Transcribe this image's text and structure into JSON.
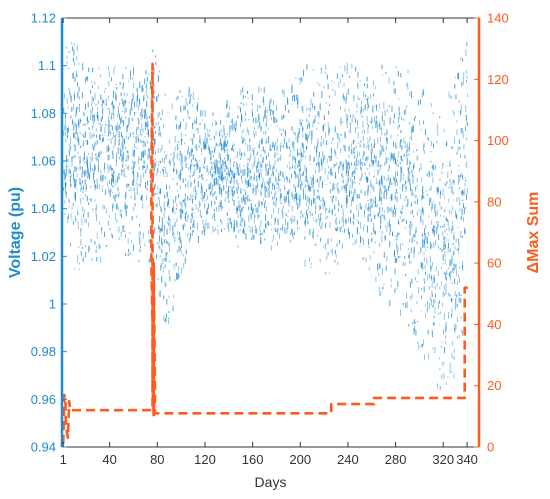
{
  "chart_data": {
    "type": "line",
    "title": "",
    "xlabel": "Days",
    "ylabel_left": "Voltage (pu)",
    "ylabel_right": "ΔMax Sum",
    "xlim": [
      0,
      350
    ],
    "ylim_left": [
      0.94,
      1.12
    ],
    "ylim_right": [
      0,
      140
    ],
    "xticks": [
      1,
      40,
      80,
      120,
      160,
      200,
      240,
      280,
      320,
      340
    ],
    "xtick_labels": [
      "1",
      "40",
      "80",
      "120",
      "160",
      "200",
      "240",
      "280",
      "320",
      "340"
    ],
    "yticks_left": [
      0.94,
      0.96,
      0.98,
      1.0,
      1.02,
      1.04,
      1.06,
      1.08,
      1.1,
      1.12
    ],
    "ytick_labels_left": [
      "0.94",
      "0.96",
      "0.98",
      "1",
      "1.02",
      "1.04",
      "1.06",
      "1.08",
      "1.1",
      "1.12"
    ],
    "yticks_right": [
      0,
      20,
      40,
      60,
      80,
      100,
      120,
      140
    ],
    "ytick_labels_right": [
      "0",
      "20",
      "40",
      "60",
      "80",
      "100",
      "120",
      "140"
    ],
    "grid": false,
    "colors": {
      "voltage": "#1f8bd0",
      "delta": "#ff5a1f",
      "axis_left": "#1f8bd0",
      "axis_right": "#ff5a1f",
      "frame": "#333333"
    },
    "series": [
      {
        "axis": "left",
        "style": "scatter-band",
        "x": [
          1,
          10,
          20,
          30,
          40,
          50,
          60,
          70,
          77,
          85,
          95,
          110,
          130,
          150,
          170,
          190,
          200,
          210,
          230,
          250,
          270,
          290,
          300,
          310,
          320,
          330,
          340
        ],
        "y_low": [
          1.04,
          1.01,
          1.02,
          1.01,
          1.03,
          1.02,
          1.02,
          1.01,
          1.02,
          0.99,
          1.0,
          1.03,
          1.03,
          1.03,
          1.03,
          1.03,
          1.03,
          1.03,
          1.03,
          1.02,
          1.0,
          0.99,
          0.98,
          0.97,
          0.96,
          0.97,
          1.0
        ],
        "y_mid": [
          1.07,
          1.06,
          1.06,
          1.07,
          1.06,
          1.07,
          1.06,
          1.07,
          1.07,
          1.03,
          1.04,
          1.05,
          1.06,
          1.05,
          1.05,
          1.05,
          1.05,
          1.05,
          1.05,
          1.06,
          1.05,
          1.05,
          1.04,
          1.03,
          1.02,
          1.03,
          1.06
        ],
        "y_high": [
          1.11,
          1.11,
          1.1,
          1.1,
          1.1,
          1.1,
          1.1,
          1.1,
          1.11,
          1.09,
          1.09,
          1.09,
          1.08,
          1.09,
          1.09,
          1.09,
          1.1,
          1.1,
          1.1,
          1.1,
          1.1,
          1.1,
          1.09,
          1.09,
          1.08,
          1.1,
          1.11
        ]
      },
      {
        "axis": "right",
        "style": "dashed-step",
        "x": [
          1,
          2,
          3,
          3,
          4,
          5,
          6,
          7,
          7,
          76,
          76,
          75,
          75,
          76,
          76,
          77,
          77,
          78,
          78,
          226,
          226,
          262,
          262,
          338,
          338,
          342
        ],
        "y": [
          1,
          17,
          14,
          10,
          5,
          3,
          15,
          12,
          12,
          12,
          125,
          90,
          60,
          40,
          20,
          10,
          60,
          20,
          11,
          11,
          14,
          14,
          16,
          16,
          52,
          52
        ]
      }
    ]
  }
}
